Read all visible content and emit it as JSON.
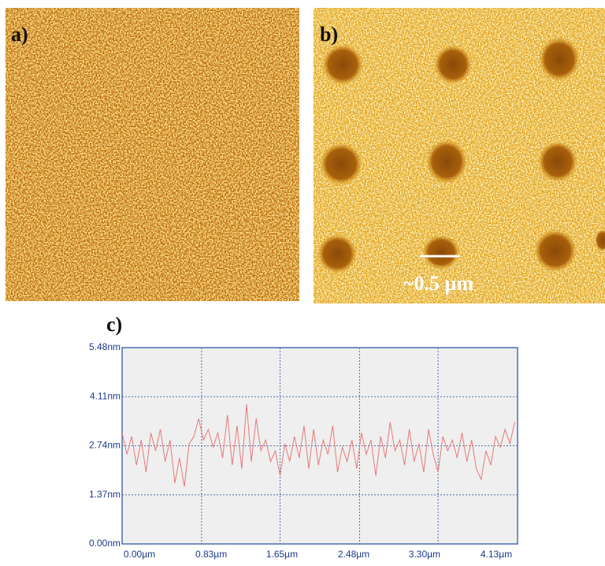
{
  "panels": {
    "a": "a)",
    "b": "b)",
    "c": "c)",
    "scale_bar": "~0.5 µm"
  },
  "chart_data": {
    "type": "line",
    "color": "#e87878",
    "grid": true,
    "xlim": [
      0,
      4.13
    ],
    "ylim": [
      0,
      5.48
    ],
    "xticks": [
      {
        "value": 0,
        "label": "0.00µm"
      },
      {
        "value": 0.83,
        "label": "0.83µm"
      },
      {
        "value": 1.65,
        "label": "1.65µm"
      },
      {
        "value": 2.48,
        "label": "2.48µm"
      },
      {
        "value": 3.3,
        "label": "3.30µm"
      },
      {
        "value": 4.13,
        "label": "4.13µm"
      }
    ],
    "yticks": [
      {
        "value": 0,
        "label": "0.00nm"
      },
      {
        "value": 1.37,
        "label": "1.37nm"
      },
      {
        "value": 2.74,
        "label": "2.74nm"
      },
      {
        "value": 4.11,
        "label": "4.11nm"
      },
      {
        "value": 5.48,
        "label": "5.48nm"
      }
    ],
    "x": [
      0,
      0.05,
      0.1,
      0.15,
      0.2,
      0.25,
      0.3,
      0.35,
      0.4,
      0.45,
      0.5,
      0.55,
      0.6,
      0.65,
      0.7,
      0.75,
      0.8,
      0.85,
      0.9,
      0.95,
      1,
      1.05,
      1.1,
      1.15,
      1.2,
      1.25,
      1.3,
      1.35,
      1.4,
      1.45,
      1.5,
      1.55,
      1.6,
      1.65,
      1.7,
      1.75,
      1.8,
      1.85,
      1.9,
      1.95,
      2,
      2.05,
      2.1,
      2.15,
      2.2,
      2.25,
      2.3,
      2.35,
      2.4,
      2.45,
      2.5,
      2.55,
      2.6,
      2.65,
      2.7,
      2.75,
      2.8,
      2.85,
      2.9,
      2.95,
      3,
      3.05,
      3.1,
      3.15,
      3.2,
      3.25,
      3.3,
      3.35,
      3.4,
      3.45,
      3.5,
      3.55,
      3.6,
      3.65,
      3.7,
      3.75,
      3.8,
      3.85,
      3.9,
      3.95,
      4,
      4.05,
      4.1
    ],
    "values": [
      3.1,
      2.5,
      3.0,
      2.2,
      2.9,
      2.0,
      3.1,
      2.6,
      3.2,
      2.3,
      2.9,
      1.7,
      2.4,
      1.6,
      2.8,
      3.0,
      3.5,
      2.9,
      3.2,
      2.7,
      3.1,
      2.4,
      3.6,
      2.2,
      3.3,
      2.1,
      3.9,
      2.3,
      3.5,
      2.6,
      2.9,
      2.3,
      2.6,
      1.9,
      2.8,
      2.3,
      3.0,
      2.4,
      3.3,
      2.1,
      3.2,
      2.2,
      2.9,
      2.5,
      3.3,
      2.0,
      2.7,
      2.3,
      2.9,
      2.1,
      3.1,
      2.5,
      2.9,
      1.9,
      3.0,
      2.4,
      3.4,
      2.6,
      2.9,
      2.2,
      3.2,
      2.3,
      2.8,
      2.0,
      3.2,
      2.5,
      2.0,
      3.0,
      2.6,
      2.9,
      2.4,
      3.1,
      2.3,
      2.9,
      2.1,
      1.8,
      2.6,
      2.2,
      3.0,
      2.7,
      3.2,
      2.8,
      3.4
    ]
  }
}
